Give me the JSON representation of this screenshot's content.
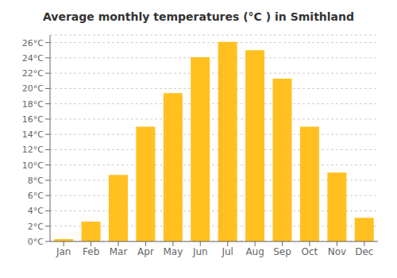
{
  "chart_data": {
    "type": "bar",
    "title": "Average monthly temperatures (°C ) in Smithland",
    "categories": [
      "Jan",
      "Feb",
      "Mar",
      "Apr",
      "May",
      "Jun",
      "Jul",
      "Aug",
      "Sep",
      "Oct",
      "Nov",
      "Dec"
    ],
    "values": [
      0.3,
      2.6,
      8.7,
      15.0,
      19.4,
      24.1,
      26.1,
      25.0,
      21.3,
      15.0,
      9.0,
      3.1
    ],
    "color": "#FFC020",
    "ylim": [
      0,
      27
    ],
    "yticks": [
      {
        "value": 0,
        "label": "0°C"
      },
      {
        "value": 2,
        "label": "2°C"
      },
      {
        "value": 4,
        "label": "4°C"
      },
      {
        "value": 6,
        "label": "6°C"
      },
      {
        "value": 8,
        "label": "8°C"
      },
      {
        "value": 10,
        "label": "10°C"
      },
      {
        "value": 12,
        "label": "12°C"
      },
      {
        "value": 14,
        "label": "14°C"
      },
      {
        "value": 16,
        "label": "16°C"
      },
      {
        "value": 18,
        "label": "18°C"
      },
      {
        "value": 20,
        "label": "20°C"
      },
      {
        "value": 22,
        "label": "22°C"
      },
      {
        "value": 24,
        "label": "24°C"
      },
      {
        "value": 26,
        "label": "26°C"
      }
    ],
    "grid": true
  }
}
